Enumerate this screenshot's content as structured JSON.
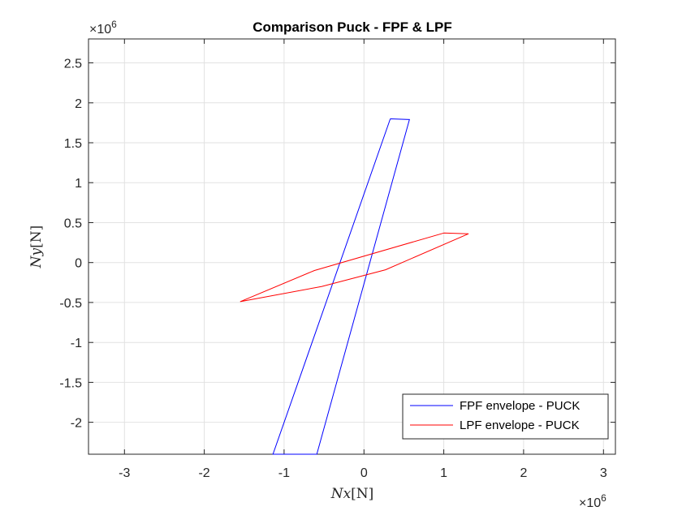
{
  "chart_data": {
    "type": "line",
    "title": "Comparison Puck - FPF & LPF",
    "xlabel_var": "Nx",
    "xlabel_unit": "[N]",
    "ylabel_var": "Ny",
    "ylabel_unit": "[N]",
    "x_exponent_base": "×10",
    "x_exponent_power": "6",
    "y_exponent_base": "×10",
    "y_exponent_power": "6",
    "xlim": [
      -3.45,
      3.15
    ],
    "ylim": [
      -2.4,
      2.8
    ],
    "xticks": [
      -3,
      -2,
      -1,
      0,
      1,
      2,
      3
    ],
    "xtick_labels": [
      "-3",
      "-2",
      "-1",
      "0",
      "1",
      "2",
      "3"
    ],
    "yticks": [
      -2,
      -1.5,
      -1,
      -0.5,
      0,
      0.5,
      1,
      1.5,
      2,
      2.5
    ],
    "ytick_labels": [
      "-2",
      "-1.5",
      "-1",
      "-0.5",
      "0",
      "0.5",
      "1",
      "1.5",
      "2",
      "2.5"
    ],
    "grid": true,
    "legend_position": "bottom-right",
    "series": [
      {
        "name": "FPF envelope - PUCK",
        "color": "#0000ff",
        "x": [
          0.33,
          0.57,
          -0.59,
          -1.14,
          0.33
        ],
        "y": [
          1.8,
          1.79,
          -2.4,
          -2.4,
          1.8
        ]
      },
      {
        "name": "LPF envelope - PUCK",
        "color": "#ff0000",
        "x": [
          1.0,
          1.31,
          0.27,
          -0.53,
          -1.55,
          -0.62,
          1.0
        ],
        "y": [
          0.37,
          0.36,
          -0.09,
          -0.3,
          -0.49,
          -0.1,
          0.37
        ]
      }
    ]
  }
}
